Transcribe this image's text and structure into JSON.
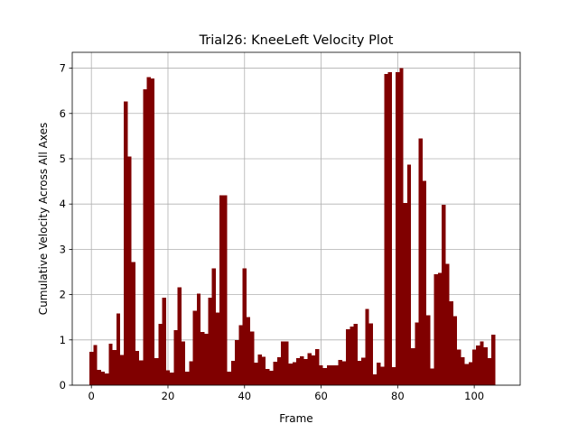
{
  "chart_data": {
    "type": "bar",
    "title": "Trial26: KneeLeft Velocity Plot",
    "xlabel": "Frame",
    "ylabel": "Cumulative Velocity Across All Axes",
    "xlim": [
      -5,
      112
    ],
    "ylim": [
      0,
      7.35
    ],
    "xticks": [
      0,
      20,
      40,
      60,
      80,
      100
    ],
    "yticks": [
      0,
      1,
      2,
      3,
      4,
      5,
      6,
      7
    ],
    "grid": true,
    "bar_color": "#800000",
    "bar_width": 1,
    "x": [
      0,
      1,
      2,
      3,
      4,
      5,
      6,
      7,
      8,
      9,
      10,
      11,
      12,
      13,
      14,
      15,
      16,
      17,
      18,
      19,
      20,
      21,
      22,
      23,
      24,
      25,
      26,
      27,
      28,
      29,
      30,
      31,
      32,
      33,
      34,
      35,
      36,
      37,
      38,
      39,
      40,
      41,
      42,
      43,
      44,
      45,
      46,
      47,
      48,
      49,
      50,
      51,
      52,
      53,
      54,
      55,
      56,
      57,
      58,
      59,
      60,
      61,
      62,
      63,
      64,
      65,
      66,
      67,
      68,
      69,
      70,
      71,
      72,
      73,
      74,
      75,
      76,
      77,
      78,
      79,
      80,
      81,
      82,
      83,
      84,
      85,
      86,
      87,
      88,
      89,
      90,
      91,
      92,
      93,
      94,
      95,
      96,
      97,
      98,
      99,
      100,
      101,
      102,
      103,
      104,
      105,
      106
    ],
    "values": [
      0.74,
      0.89,
      0.34,
      0.3,
      0.26,
      0.92,
      0.78,
      1.58,
      0.67,
      6.26,
      5.05,
      2.72,
      0.76,
      0.55,
      6.53,
      6.8,
      6.77,
      0.6,
      1.35,
      1.93,
      0.33,
      0.28,
      1.22,
      2.16,
      0.97,
      0.3,
      0.53,
      1.64,
      2.02,
      1.18,
      1.14,
      1.93,
      2.58,
      1.6,
      4.19,
      4.19,
      0.3,
      0.54,
      1.0,
      1.32,
      2.58,
      1.5,
      1.19,
      0.5,
      0.68,
      0.63,
      0.36,
      0.32,
      0.52,
      0.62,
      0.97,
      0.97,
      0.48,
      0.51,
      0.6,
      0.64,
      0.58,
      0.71,
      0.66,
      0.8,
      0.44,
      0.38,
      0.44,
      0.44,
      0.44,
      0.56,
      0.53,
      1.23,
      1.29,
      1.35,
      0.54,
      0.61,
      1.68,
      1.36,
      0.24,
      0.5,
      0.41,
      6.87,
      6.91,
      0.4,
      6.91,
      7.0,
      4.02,
      4.87,
      0.82,
      1.38,
      5.45,
      4.51,
      1.54,
      0.37,
      2.45,
      2.48,
      3.98,
      2.68,
      1.85,
      1.52,
      0.79,
      0.62,
      0.47,
      0.51,
      0.79,
      0.88,
      0.97,
      0.84,
      0.6,
      1.12,
      0.0
    ]
  }
}
